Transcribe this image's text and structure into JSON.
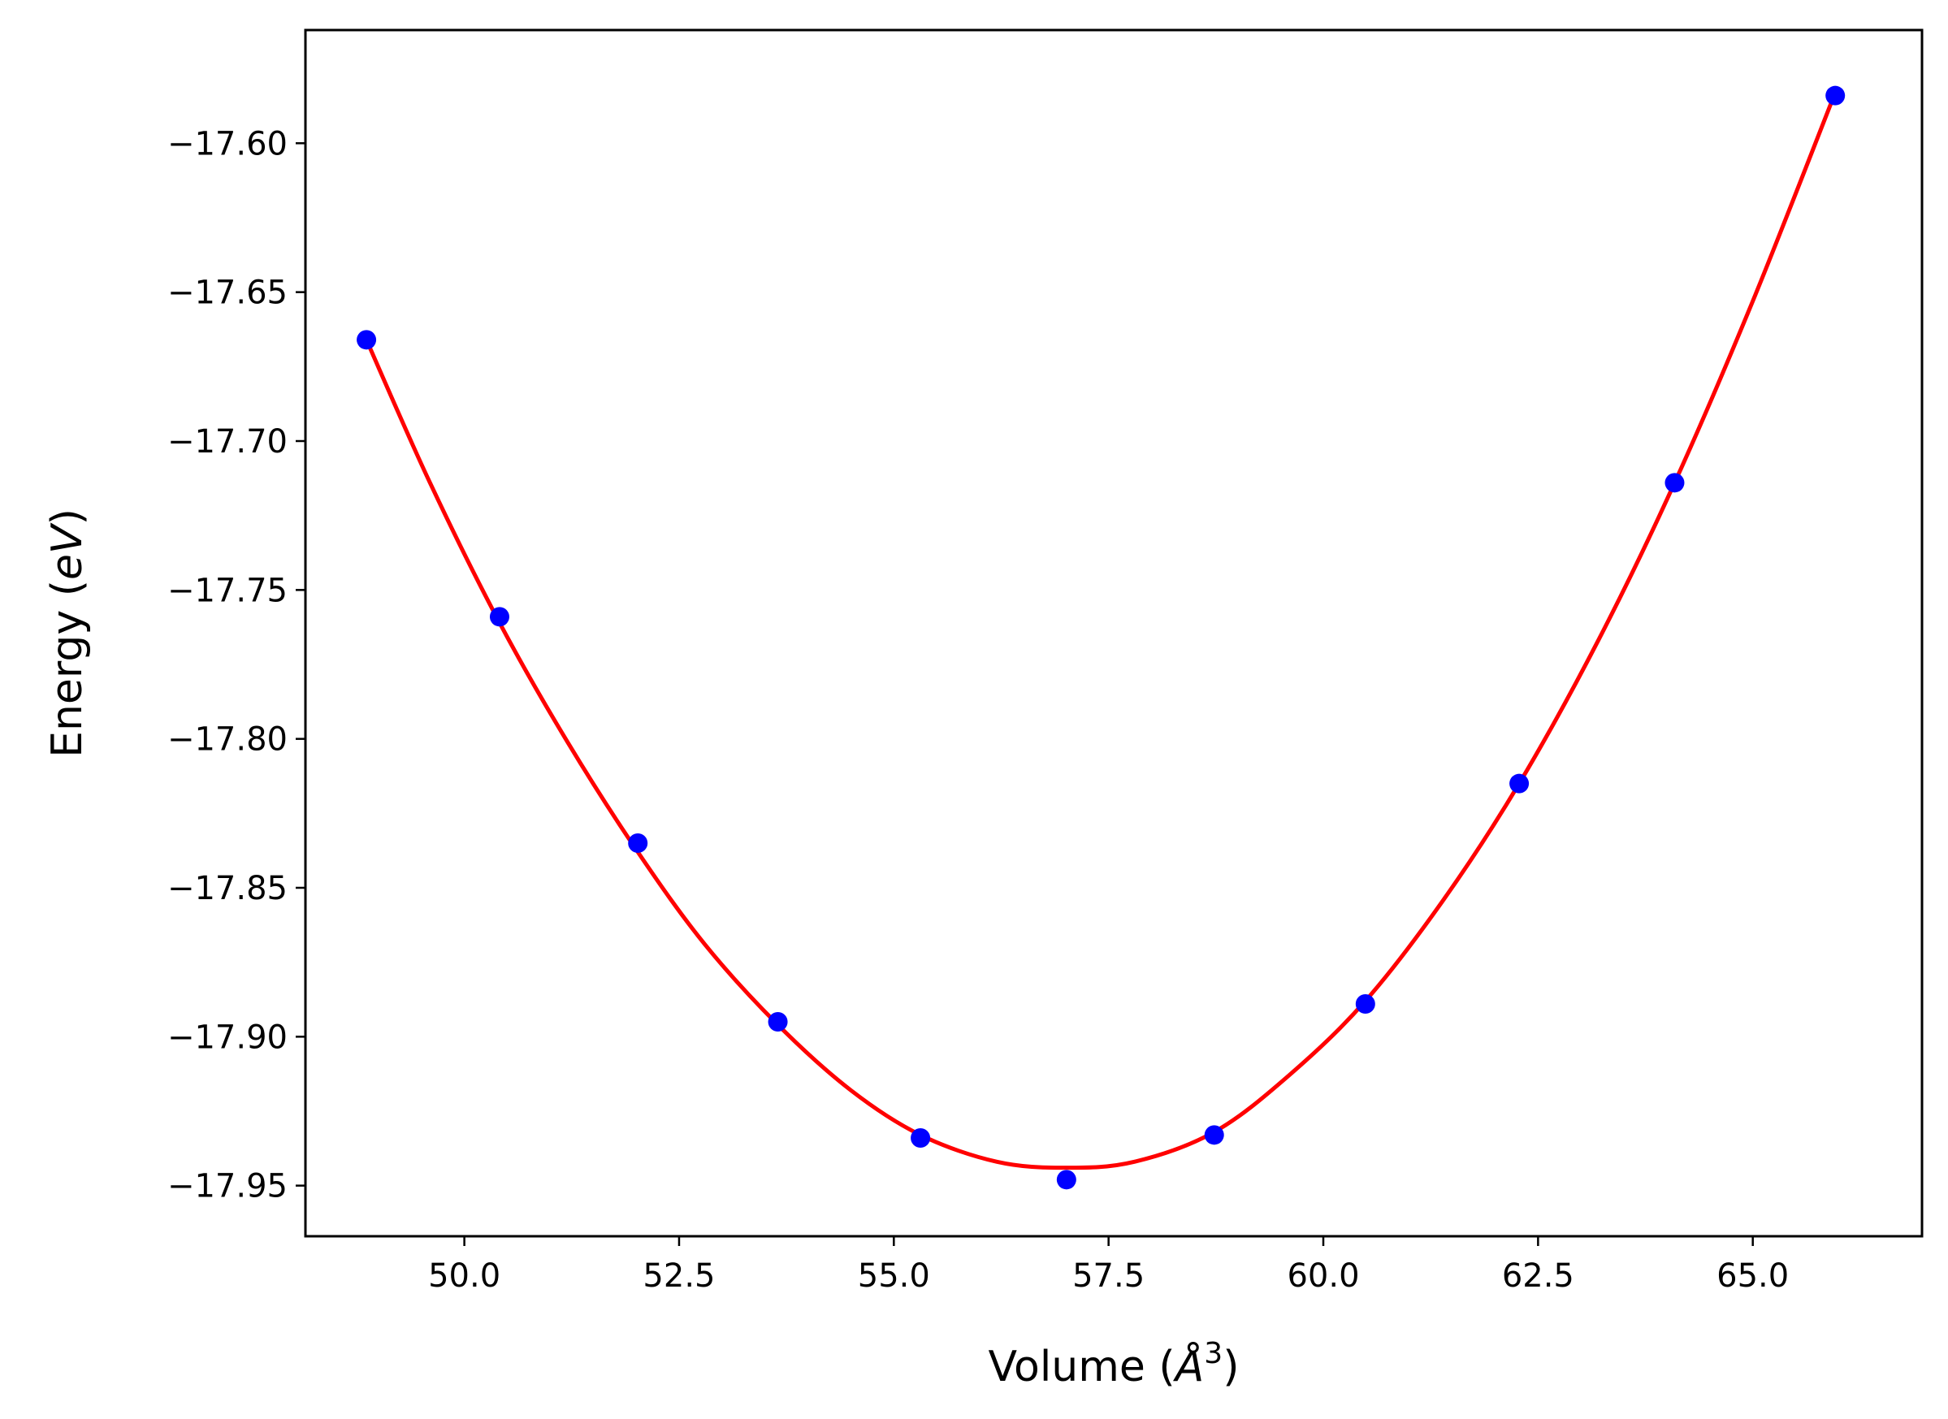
{
  "chart_data": {
    "type": "scatter",
    "title": "",
    "xlabel": {
      "prefix": "Volume (",
      "unit": "Å",
      "exponent": "3",
      "suffix": ")"
    },
    "ylabel": {
      "prefix": "Energy (",
      "unit": "eV",
      "suffix": ")"
    },
    "xlim": [
      48.15,
      66.97
    ],
    "ylim": [
      -17.967,
      -17.562
    ],
    "xticks": [
      50.0,
      52.5,
      55.0,
      57.5,
      60.0,
      62.5,
      65.0
    ],
    "xtick_labels": [
      "50.0",
      "52.5",
      "55.0",
      "57.5",
      "60.0",
      "62.5",
      "65.0"
    ],
    "yticks": [
      -17.6,
      -17.65,
      -17.7,
      -17.75,
      -17.8,
      -17.85,
      -17.9,
      -17.95
    ],
    "ytick_labels": [
      "−17.60",
      "−17.65",
      "−17.70",
      "−17.75",
      "−17.80",
      "−17.85",
      "−17.90",
      "−17.95"
    ],
    "grid": false,
    "legend": "none",
    "series": [
      {
        "kind": "points",
        "color": "#0000ff",
        "x": [
          48.86,
          50.41,
          52.02,
          53.65,
          55.31,
          57.01,
          58.73,
          60.49,
          62.28,
          64.09,
          65.96
        ],
        "y": [
          -17.666,
          -17.759,
          -17.835,
          -17.895,
          -17.934,
          -17.948,
          -17.933,
          -17.889,
          -17.815,
          -17.714,
          -17.584
        ]
      },
      {
        "kind": "fit-curve",
        "color": "#ff0000",
        "x": [
          48.86,
          49.6,
          50.41,
          51.2,
          52.02,
          52.8,
          53.65,
          54.5,
          55.31,
          56.2,
          57.0,
          57.8,
          58.73,
          59.6,
          60.49,
          61.4,
          62.28,
          63.2,
          64.09,
          65.0,
          65.96
        ],
        "y": [
          -17.666,
          -17.714,
          -17.761,
          -17.801,
          -17.838,
          -17.869,
          -17.896,
          -17.918,
          -17.933,
          -17.942,
          -17.944,
          -17.942,
          -17.932,
          -17.913,
          -17.888,
          -17.854,
          -17.815,
          -17.767,
          -17.714,
          -17.653,
          -17.583
        ]
      }
    ]
  }
}
